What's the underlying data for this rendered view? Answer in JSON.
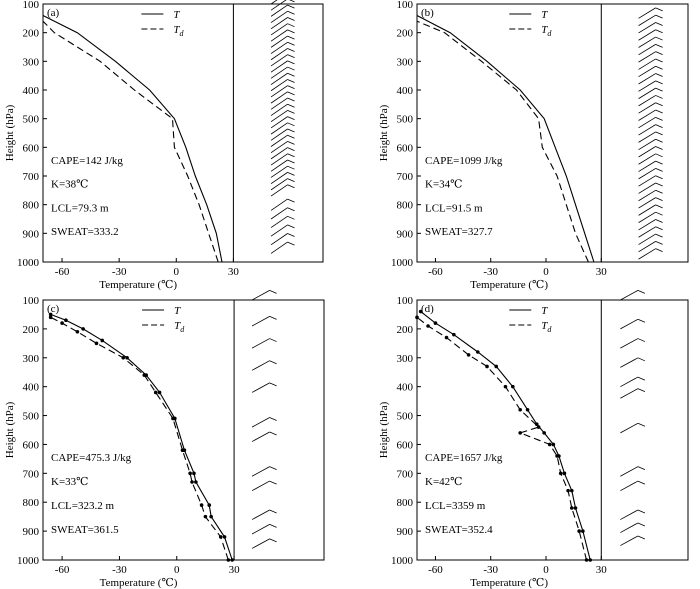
{
  "chart_data": [
    {
      "type": "line",
      "panel_label": "(a)",
      "xlabel": "Temperature (℃)",
      "ylabel": "Height (hPa)",
      "xlim": [
        -70,
        30
      ],
      "ylim": [
        1000,
        100
      ],
      "xticks": [
        "-60",
        "-30",
        "0",
        "30"
      ],
      "yticks": [
        "100",
        "200",
        "300",
        "400",
        "500",
        "600",
        "700",
        "800",
        "900",
        "1000"
      ],
      "legend": [
        "T",
        "Td"
      ],
      "annotations": [
        "CAPE=142 J/kg",
        "K=38℃",
        "LCL=79.3 m",
        "SWEAT=333.2"
      ],
      "markers": false,
      "series": [
        {
          "name": "T",
          "style": "solid",
          "points": [
            [
              24,
              1000
            ],
            [
              21,
              900
            ],
            [
              16,
              800
            ],
            [
              10,
              700
            ],
            [
              5,
              600
            ],
            [
              -1,
              500
            ],
            [
              -14,
              400
            ],
            [
              -32,
              300
            ],
            [
              -52,
              200
            ],
            [
              -70,
              140
            ]
          ]
        },
        {
          "name": "Td",
          "style": "dashed",
          "points": [
            [
              22,
              1000
            ],
            [
              17,
              900
            ],
            [
              12,
              800
            ],
            [
              6,
              700
            ],
            [
              -1,
              600
            ],
            [
              -2,
              500
            ],
            [
              -22,
              400
            ],
            [
              -40,
              300
            ],
            [
              -64,
              200
            ],
            [
              -70,
              160
            ]
          ]
        }
      ],
      "wind": {
        "tail_x": 42,
        "slope": 0.6,
        "bands": [
          [
            100,
            770,
            32
          ],
          [
            820,
            970,
            6
          ]
        ]
      }
    },
    {
      "type": "line",
      "panel_label": "(b)",
      "xlabel": "Temperature (℃)",
      "ylabel": "Height (hPa)",
      "xlim": [
        -70,
        30
      ],
      "ylim": [
        1000,
        100
      ],
      "xticks": [
        "-60",
        "-30",
        "0",
        "30"
      ],
      "yticks": [
        "100",
        "200",
        "300",
        "400",
        "500",
        "600",
        "700",
        "800",
        "900",
        "1000"
      ],
      "legend": [
        "T",
        "Td"
      ],
      "annotations": [
        "CAPE=1099 J/kg",
        "K=34℃",
        "LCL=91.5 m",
        "SWEAT=327.7"
      ],
      "markers": false,
      "series": [
        {
          "name": "T",
          "style": "solid",
          "points": [
            [
              26,
              1000
            ],
            [
              21,
              900
            ],
            [
              16,
              800
            ],
            [
              11,
              700
            ],
            [
              5,
              600
            ],
            [
              -1,
              500
            ],
            [
              -14,
              400
            ],
            [
              -32,
              300
            ],
            [
              -52,
              200
            ],
            [
              -70,
              140
            ]
          ]
        },
        {
          "name": "Td",
          "style": "dashed",
          "points": [
            [
              23,
              1000
            ],
            [
              16,
              900
            ],
            [
              11,
              800
            ],
            [
              6,
              700
            ],
            [
              -2,
              600
            ],
            [
              -4,
              500
            ],
            [
              -16,
              400
            ],
            [
              -35,
              300
            ],
            [
              -55,
              200
            ],
            [
              -70,
              160
            ]
          ]
        }
      ],
      "wind": {
        "tail_x": 43,
        "slope": 0.55,
        "bands": [
          [
            150,
            990,
            34
          ]
        ]
      }
    },
    {
      "type": "line",
      "panel_label": "(c)",
      "xlabel": "Temperature (℃)",
      "ylabel": "Height (hPa)",
      "xlim": [
        -70,
        30
      ],
      "ylim": [
        1000,
        100
      ],
      "xticks": [
        "-60",
        "-30",
        "0",
        "30"
      ],
      "yticks": [
        "100",
        "200",
        "300",
        "400",
        "500",
        "600",
        "700",
        "800",
        "900",
        "1000"
      ],
      "legend": [
        "T",
        "Td"
      ],
      "annotations": [
        "CAPE=475.3 J/kg",
        "K=33℃",
        "LCL=323.2 m",
        "SWEAT=361.5"
      ],
      "markers": true,
      "series": [
        {
          "name": "T",
          "style": "solid",
          "points": [
            [
              29,
              1000
            ],
            [
              25,
              920
            ],
            [
              18,
              850
            ],
            [
              17,
              810
            ],
            [
              10,
              730
            ],
            [
              9,
              700
            ],
            [
              4,
              620
            ],
            [
              -1,
              510
            ],
            [
              -9,
              420
            ],
            [
              -16,
              360
            ],
            [
              -26,
              300
            ],
            [
              -39,
              240
            ],
            [
              -49,
              200
            ],
            [
              -58,
              170
            ],
            [
              -66,
              150
            ]
          ]
        },
        {
          "name": "Td",
          "style": "dashed",
          "points": [
            [
              27,
              1000
            ],
            [
              23,
              920
            ],
            [
              15,
              850
            ],
            [
              13,
              810
            ],
            [
              8,
              730
            ],
            [
              7,
              700
            ],
            [
              3,
              620
            ],
            [
              -2,
              510
            ],
            [
              -11,
              420
            ],
            [
              -17,
              360
            ],
            [
              -28,
              300
            ],
            [
              -42,
              250
            ],
            [
              -52,
              210
            ],
            [
              -60,
              180
            ],
            [
              -66,
              160
            ]
          ]
        }
      ],
      "wind": {
        "tail_x": 20,
        "slope": 0.5,
        "bands": [
          [
            100,
            140,
            1
          ],
          [
            190,
            420,
            4
          ],
          [
            540,
            590,
            2
          ],
          [
            710,
            760,
            2
          ],
          [
            860,
            960,
            3
          ]
        ]
      }
    },
    {
      "type": "line",
      "panel_label": "(d)",
      "xlabel": "Temperature (℃)",
      "ylabel": "Height (hPa)",
      "xlim": [
        -70,
        30
      ],
      "ylim": [
        1000,
        100
      ],
      "xticks": [
        "-60",
        "-30",
        "0",
        "30"
      ],
      "yticks": [
        "100",
        "200",
        "300",
        "400",
        "500",
        "600",
        "700",
        "800",
        "900",
        "1000"
      ],
      "legend": [
        "T",
        "Td"
      ],
      "annotations": [
        "CAPE=1657 J/kg",
        "K=42℃",
        "LCL=3359 m",
        "SWEAT=352.4"
      ],
      "markers": true,
      "series": [
        {
          "name": "T",
          "style": "solid",
          "points": [
            [
              24,
              1000
            ],
            [
              20,
              900
            ],
            [
              16,
              820
            ],
            [
              14,
              760
            ],
            [
              10,
              700
            ],
            [
              7,
              640
            ],
            [
              4,
              600
            ],
            [
              -1,
              560
            ],
            [
              -5,
              530
            ],
            [
              -10,
              480
            ],
            [
              -18,
              400
            ],
            [
              -27,
              330
            ],
            [
              -37,
              280
            ],
            [
              -50,
              220
            ],
            [
              -60,
              180
            ],
            [
              -68,
              140
            ]
          ]
        },
        {
          "name": "Td",
          "style": "dashed",
          "points": [
            [
              22,
              1000
            ],
            [
              18,
              900
            ],
            [
              14,
              820
            ],
            [
              12,
              760
            ],
            [
              8,
              700
            ],
            [
              6,
              640
            ],
            [
              2,
              600
            ],
            [
              -14,
              560
            ],
            [
              -4,
              540
            ],
            [
              -14,
              480
            ],
            [
              -22,
              400
            ],
            [
              -32,
              330
            ],
            [
              -42,
              290
            ],
            [
              -54,
              230
            ],
            [
              -64,
              190
            ],
            [
              -70,
              160
            ]
          ]
        }
      ],
      "wind": {
        "tail_x": 22,
        "slope": 0.5,
        "bands": [
          [
            100,
            140,
            1
          ],
          [
            200,
            400,
            4
          ],
          [
            440,
            560,
            2
          ],
          [
            710,
            760,
            2
          ],
          [
            860,
            950,
            3
          ]
        ]
      }
    }
  ]
}
